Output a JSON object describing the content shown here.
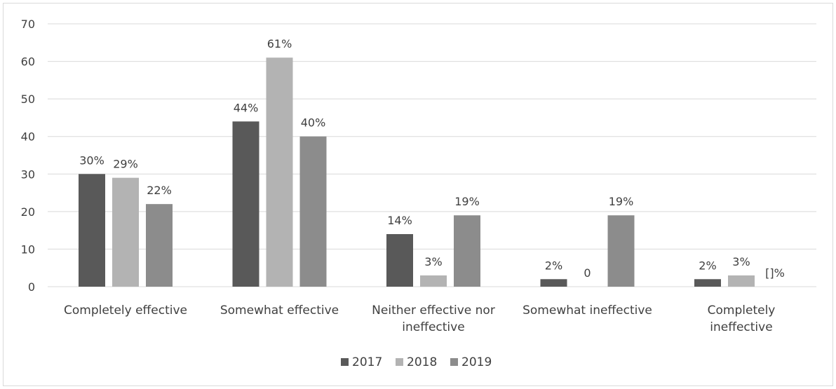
{
  "chart_data": {
    "type": "bar",
    "categories": [
      [
        "Completely effective"
      ],
      [
        "Somewhat effective"
      ],
      [
        "Neither effective nor",
        "ineffective"
      ],
      [
        "Somewhat ineffective"
      ],
      [
        "Completely",
        "ineffective"
      ]
    ],
    "series": [
      {
        "name": "2017",
        "color": "#595959",
        "values": [
          30,
          44,
          14,
          2,
          2
        ],
        "labels": [
          "30%",
          "44%",
          "14%",
          "2%",
          "2%"
        ]
      },
      {
        "name": "2018",
        "color": "#b3b3b3",
        "values": [
          29,
          61,
          3,
          0,
          3
        ],
        "labels": [
          "29%",
          "61%",
          "3%",
          "0",
          "3%"
        ]
      },
      {
        "name": "2019",
        "color": "#8c8c8c",
        "values": [
          22,
          40,
          19,
          19,
          0
        ],
        "labels": [
          "22%",
          "40%",
          "19%",
          "19%",
          "[]%"
        ]
      }
    ],
    "ylim": [
      0,
      70
    ],
    "yticks": [
      0,
      10,
      20,
      30,
      40,
      50,
      60,
      70
    ],
    "grid": true,
    "legend": "bottom"
  }
}
